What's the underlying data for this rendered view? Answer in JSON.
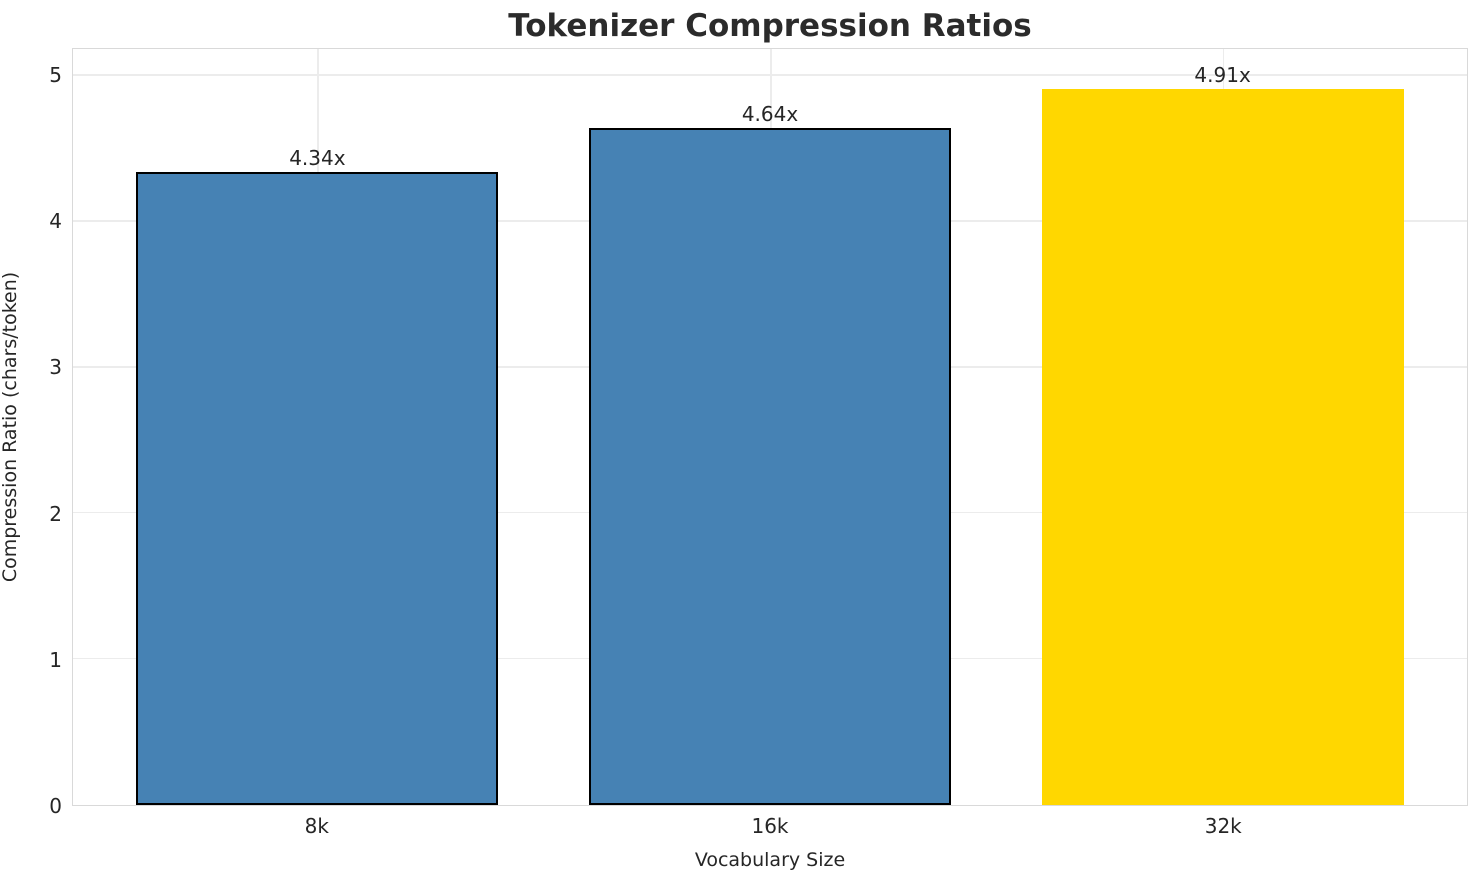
{
  "title": "Tokenizer Compression Ratios",
  "chart_data": {
    "type": "bar",
    "title": "Tokenizer Compression Ratios",
    "xlabel": "Vocabulary Size",
    "ylabel": "Compression Ratio (chars/token)",
    "categories": [
      "8k",
      "16k",
      "32k"
    ],
    "values": [
      4.34,
      4.64,
      4.91
    ],
    "bar_labels": [
      "4.34x",
      "4.64x",
      "4.91x"
    ],
    "bar_colors": [
      "#4682B4",
      "#4682B4",
      "#FFD700"
    ],
    "bar_edge_colors": [
      "#000000",
      "#000000",
      "none"
    ],
    "bar_edge_width": 2,
    "bar_width_fraction": 0.8,
    "ylim": [
      0,
      5.185
    ],
    "yticks": [
      0,
      1,
      2,
      3,
      4,
      5
    ],
    "grid": true,
    "legend": "none",
    "colors": {
      "grid": "#ececec",
      "spine": "#d9d9d9",
      "text": "#262626",
      "title_text": "#2b2b2b",
      "background": "#ffffff"
    }
  }
}
